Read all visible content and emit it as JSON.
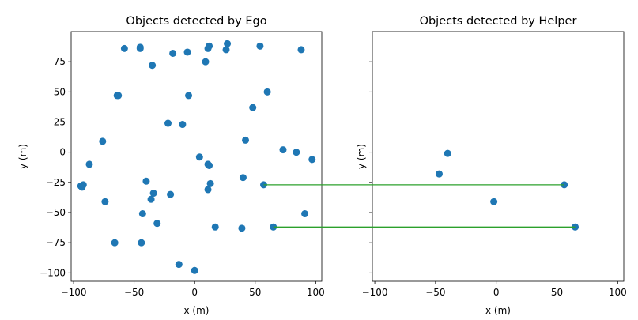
{
  "chart_data": [
    {
      "type": "scatter",
      "title": "Objects detected by Ego",
      "xlabel": "x (m)",
      "ylabel": "y (m)",
      "xlim": [
        -102,
        105
      ],
      "ylim": [
        -107,
        100
      ],
      "xticks": [
        -100,
        -50,
        0,
        50,
        100
      ],
      "yticks": [
        -100,
        -75,
        -50,
        -25,
        0,
        25,
        50,
        75
      ],
      "grid": false,
      "marker_color": "#1f77b4",
      "points": [
        [
          -58,
          86
        ],
        [
          -45,
          86
        ],
        [
          -45,
          87
        ],
        [
          -18,
          82
        ],
        [
          -6,
          83
        ],
        [
          11,
          86
        ],
        [
          12,
          88
        ],
        [
          26,
          85
        ],
        [
          27,
          90
        ],
        [
          54,
          88
        ],
        [
          88,
          85
        ],
        [
          -35,
          72
        ],
        [
          9,
          75
        ],
        [
          -64,
          47
        ],
        [
          -63,
          47
        ],
        [
          -5,
          47
        ],
        [
          60,
          50
        ],
        [
          48,
          37
        ],
        [
          -22,
          24
        ],
        [
          -10,
          23
        ],
        [
          42,
          10
        ],
        [
          -76,
          9
        ],
        [
          73,
          2
        ],
        [
          84,
          0
        ],
        [
          97,
          -6
        ],
        [
          4,
          -4
        ],
        [
          11,
          -10
        ],
        [
          12,
          -11
        ],
        [
          -87,
          -10
        ],
        [
          40,
          -21
        ],
        [
          -40,
          -24
        ],
        [
          13,
          -26
        ],
        [
          57,
          -27
        ],
        [
          -94,
          -28
        ],
        [
          -93,
          -29
        ],
        [
          -92,
          -27
        ],
        [
          -34,
          -34
        ],
        [
          -20,
          -35
        ],
        [
          11,
          -31
        ],
        [
          -36,
          -39
        ],
        [
          -74,
          -41
        ],
        [
          -43,
          -51
        ],
        [
          91,
          -51
        ],
        [
          -31,
          -59
        ],
        [
          17,
          -62
        ],
        [
          39,
          -63
        ],
        [
          65,
          -62
        ],
        [
          -66,
          -75
        ],
        [
          -44,
          -75
        ],
        [
          -13,
          -93
        ],
        [
          0,
          -98
        ]
      ]
    },
    {
      "type": "scatter",
      "title": "Objects detected by Helper",
      "xlabel": "x (m)",
      "ylabel": "y (m)",
      "xlim": [
        -102,
        105
      ],
      "ylim": [
        -107,
        100
      ],
      "xticks": [
        -100,
        -50,
        0,
        50,
        100
      ],
      "yticks": [
        -100,
        -75,
        -50,
        -25,
        0,
        25,
        50,
        75
      ],
      "grid": false,
      "marker_color": "#1f77b4",
      "points": [
        [
          -40,
          -1
        ],
        [
          -47,
          -18
        ],
        [
          -2,
          -41
        ],
        [
          56,
          -27
        ],
        [
          65,
          -62
        ]
      ]
    }
  ],
  "matches": {
    "color": "#2ca02c",
    "pairs": [
      {
        "ego": [
          57,
          -27
        ],
        "helper": [
          56,
          -27
        ]
      },
      {
        "ego": [
          65,
          -62
        ],
        "helper": [
          65,
          -62
        ]
      }
    ]
  }
}
